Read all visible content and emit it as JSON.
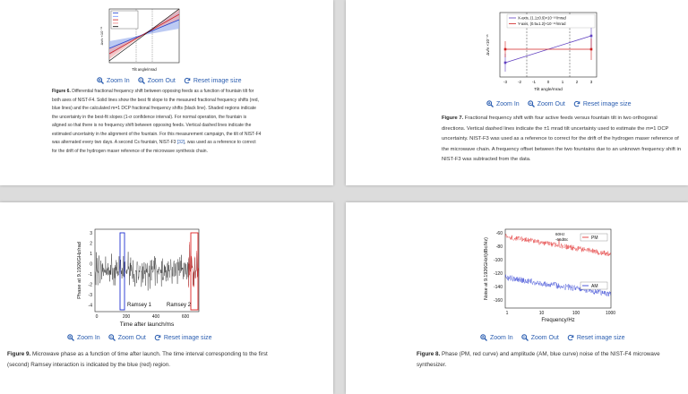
{
  "figures": [
    {
      "image": {
        "x_label": "Tilt angle/mrad",
        "y_label": "Δν/ν ×10⁻¹⁵"
      },
      "controls": {
        "zoom_in": "Zoom In",
        "zoom_out": "Zoom Out",
        "reset": "Reset image size"
      },
      "caption": {
        "label": "Figure 6.",
        "text_before": " Differential fractional frequency shift between opposing feeds as a function of fountain tilt for both axes of NIST-F4. Solid lines show the best fit slope to the measured fractional frequency shifts (red, blue lines) and the calculated m=1 DCP fractional frequency shifts (black line). Shaded regions indicate the uncertainty in the best-fit slopes (1-σ confidence interval). For normal operation, the fountain is aligned so that there is no frequency shift between opposing feeds. Vertical dashed lines indicate the estimated uncertainty in the alignment of the fountain. For this measurement campaign, the tilt of NIST-F4 was alternated every two days. A second Cs fountain, NIST-F3 ",
        "link": "[32]",
        "text_after": ", was used as a reference to correct for the drift of the hydrogen maser reference of the microwave synthesis chain."
      }
    },
    {
      "image": {
        "x_label": "Tilt angle/mrad",
        "y_label": "Δν/ν ×10⁻¹⁵",
        "legend": [
          "X-axis, (1.1±0.9)×10⁻¹⁶/mrad",
          "Y-axis, (0.5±1.2)×10⁻¹⁶/mrad"
        ],
        "x_ticks": [
          "-3",
          "-2",
          "-1",
          "0",
          "1",
          "2",
          "3"
        ]
      },
      "controls": {
        "zoom_in": "Zoom In",
        "zoom_out": "Zoom Out",
        "reset": "Reset image size"
      },
      "caption": {
        "label": "Figure 7.",
        "text": " Fractional frequency shift with four active feeds versus fountain tilt in two orthogonal directions. Vertical dashed lines indicate the ±1 mrad tilt uncertainty used to estimate the m=1 DCP uncertainty. NIST-F3 was used as a reference to correct for the drift of the hydrogen maser reference of the microwave chain. A frequency offset between the two fountains due to an unknown frequency shift in NIST-F3 was subtracted from the data."
      }
    },
    {
      "image": {
        "x_label": "Time after launch/ms",
        "y_label": "Phase at 9.1926GHz/rad",
        "y_ticks": [
          "3",
          "2",
          "1",
          "0",
          "-1",
          "-2",
          "-3",
          "-4"
        ],
        "x_ticks": [
          "0",
          "200",
          "400",
          "600"
        ],
        "region_labels": [
          "Ramsey 1",
          "Ramsey 2"
        ]
      },
      "controls": {
        "zoom_in": "Zoom In",
        "zoom_out": "Zoom Out",
        "reset": "Reset image size"
      },
      "caption": {
        "label": "Figure 9.",
        "text": " Microwave phase as a function of time after launch. The time interval corresponding to the first (second) Ramsey interaction is indicated by the blue (red) region."
      }
    },
    {
      "image": {
        "x_label": "Frequency/Hz",
        "y_label": "Noise at 9.1926GHz/(dBc/Hz)",
        "y_ticks": [
          "-60",
          "-80",
          "-100",
          "-120",
          "-140",
          "-160"
        ],
        "x_ticks": [
          "1",
          "10",
          "100",
          "1000"
        ],
        "legend": [
          "PM",
          "AM"
        ],
        "annotations": [
          "60Hz",
          "-66dBc"
        ]
      },
      "controls": {
        "zoom_in": "Zoom In",
        "zoom_out": "Zoom Out",
        "reset": "Reset image size"
      },
      "caption": {
        "label": "Figure 8.",
        "text": " Phase (PM, red curve) and amplitude (AM, blue curve) noise of the NIST-F4 microwave synthesizer."
      }
    }
  ]
}
